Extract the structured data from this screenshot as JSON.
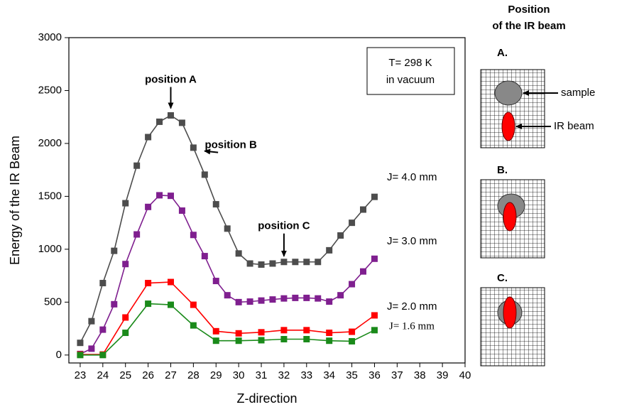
{
  "chart_data": {
    "type": "line",
    "xlabel": "Z-direction",
    "ylabel": "Energy of the IR Beam",
    "xlim": [
      22.5,
      40
    ],
    "ylim": [
      -75,
      3000
    ],
    "xticks": [
      23,
      24,
      25,
      26,
      27,
      28,
      29,
      30,
      31,
      32,
      33,
      34,
      35,
      36,
      37,
      38,
      39,
      40
    ],
    "yticks": [
      0,
      500,
      1000,
      1500,
      2000,
      2500,
      3000
    ],
    "series": [
      {
        "name": "J= 4.0 mm",
        "color": "#4d4d4d",
        "x": [
          23,
          23.5,
          24,
          24.5,
          25,
          25.5,
          26,
          26.5,
          27,
          27.5,
          28,
          28.5,
          29,
          29.5,
          30,
          30.5,
          31,
          31.5,
          32,
          32.5,
          33,
          33.5,
          34,
          34.5,
          35,
          35.5,
          36
        ],
        "values": [
          115,
          320,
          680,
          985,
          1435,
          1790,
          2060,
          2205,
          2265,
          2195,
          1960,
          1705,
          1425,
          1195,
          960,
          865,
          855,
          865,
          880,
          880,
          880,
          880,
          990,
          1130,
          1250,
          1375,
          1495
        ]
      },
      {
        "name": "J= 3.0 mm",
        "color": "#7f1f8f",
        "x": [
          23,
          23.5,
          24,
          24.5,
          25,
          25.5,
          26,
          26.5,
          27,
          27.5,
          28,
          28.5,
          29,
          29.5,
          30,
          30.5,
          31,
          31.5,
          32,
          32.5,
          33,
          33.5,
          34,
          34.5,
          35,
          35.5,
          36
        ],
        "values": [
          10,
          60,
          240,
          480,
          860,
          1140,
          1400,
          1510,
          1505,
          1365,
          1135,
          935,
          700,
          565,
          500,
          505,
          515,
          525,
          535,
          540,
          540,
          535,
          505,
          565,
          670,
          790,
          910
        ]
      },
      {
        "name": "J= 2.0 mm",
        "color": "#ff0000",
        "x": [
          23,
          24,
          25,
          26,
          27,
          28,
          29,
          30,
          31,
          32,
          33,
          34,
          35,
          36
        ],
        "values": [
          5,
          5,
          355,
          680,
          690,
          475,
          225,
          205,
          215,
          235,
          235,
          210,
          220,
          375
        ]
      },
      {
        "name": "J= 1.6 mm",
        "color": "#1a8a1a",
        "x": [
          23,
          24,
          25,
          26,
          27,
          28,
          29,
          30,
          31,
          32,
          33,
          34,
          35,
          36
        ],
        "values": [
          0,
          0,
          210,
          485,
          475,
          280,
          135,
          135,
          140,
          150,
          150,
          135,
          130,
          235
        ]
      }
    ],
    "annotations": [
      {
        "text": "position A",
        "x": 27,
        "y": 2265
      },
      {
        "text": "position B",
        "x": 28.4,
        "y": 1700
      },
      {
        "text": "position C",
        "x": 32,
        "y": 880
      }
    ],
    "info_box": [
      "T= 298 K",
      "in vacuum"
    ]
  },
  "diagram": {
    "title": [
      "Position",
      "of the IR beam"
    ],
    "panels": [
      "A.",
      "B.",
      "C."
    ],
    "sample_label": "sample",
    "beam_label": "IR beam"
  }
}
